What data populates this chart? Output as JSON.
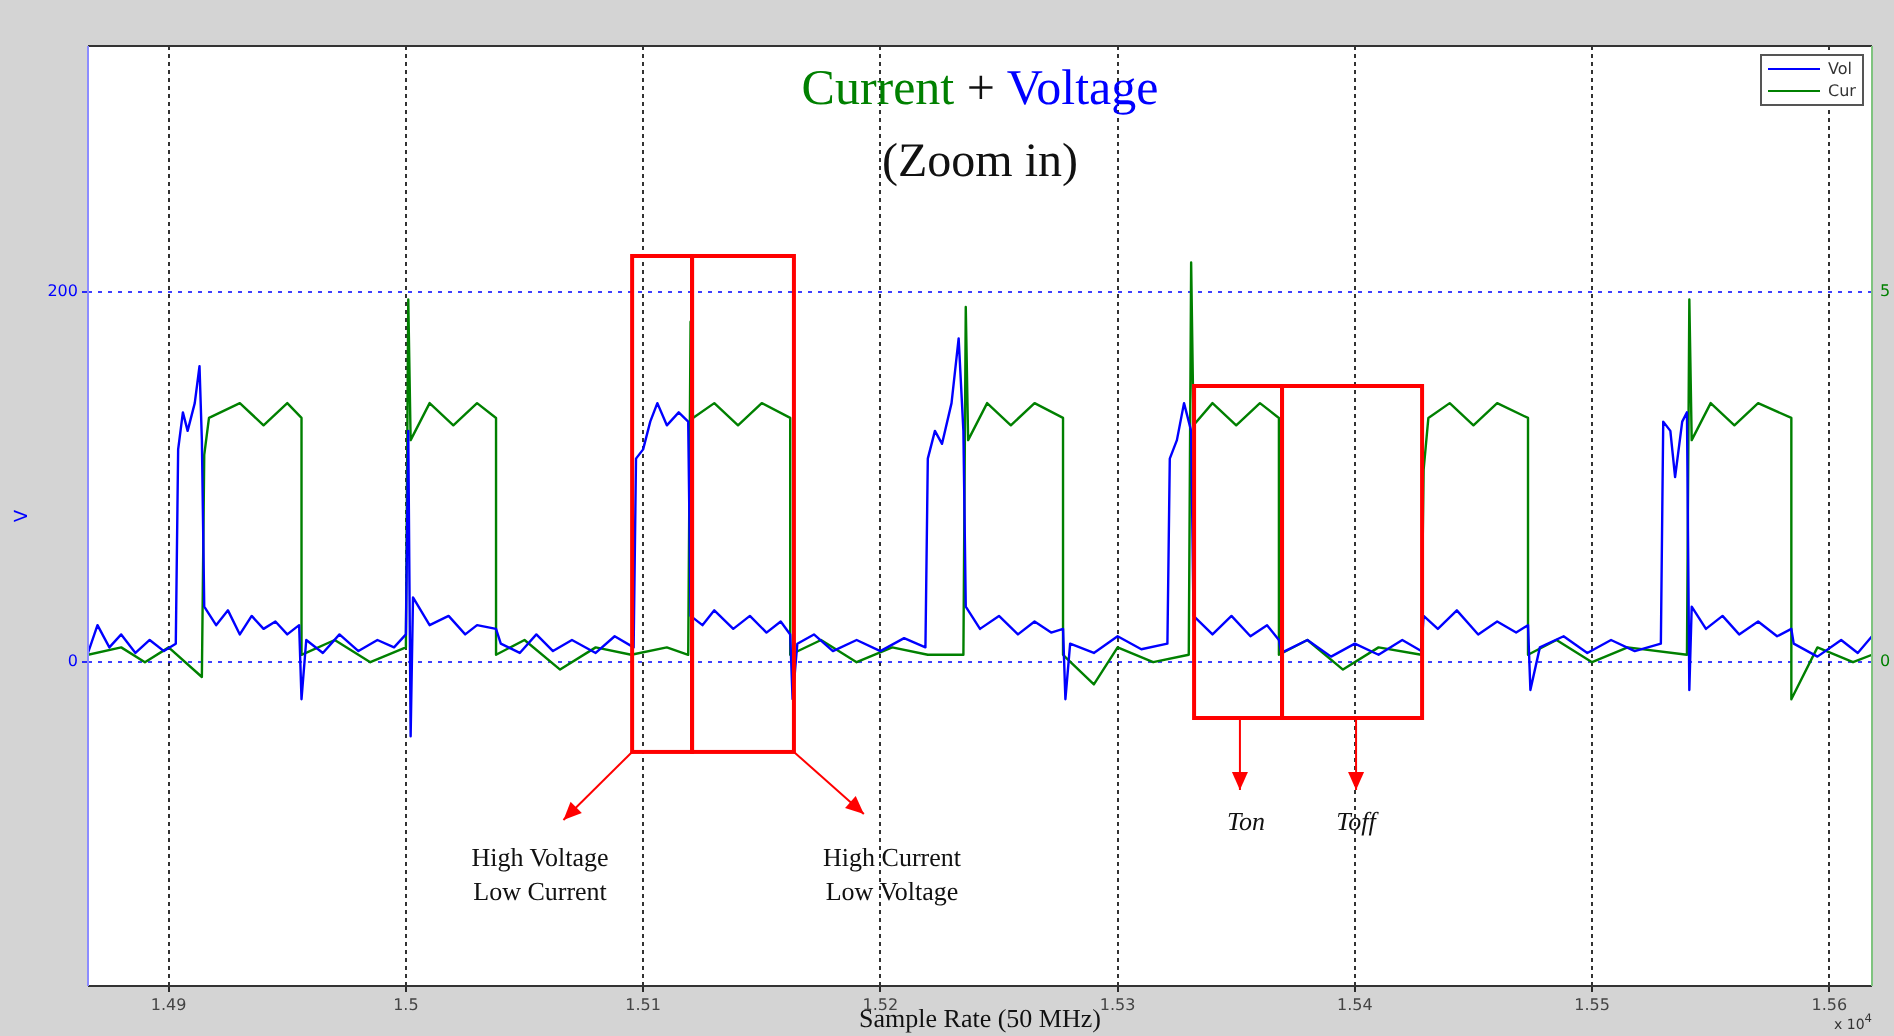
{
  "chart_data": {
    "type": "line",
    "title": "Current + Voltage",
    "subtitle": "(Zoom in)",
    "xlabel": "Sample Rate (50 MHz)",
    "ylabel": "V",
    "xlim": [
      1.4866,
      1.5618
    ],
    "xticks": [
      1.49,
      1.5,
      1.51,
      1.52,
      1.53,
      1.54,
      1.55,
      1.56
    ],
    "ylim": [
      -175,
      333
    ],
    "yticks": [
      0,
      200
    ],
    "y2lim": [
      -4.375,
      8.325
    ],
    "y2ticks": [
      0,
      5
    ],
    "grid": true,
    "legend": "top right",
    "marker": "none",
    "line_style": "solid",
    "series": [
      {
        "name": "Vol",
        "color": "#0000ff",
        "x": [
          1.4866,
          1.487,
          1.4875,
          1.488,
          1.4886,
          1.4892,
          1.4898,
          1.4903,
          1.4904,
          1.4906,
          1.4908,
          1.4911,
          1.4913,
          1.4914,
          1.4915,
          1.492,
          1.4925,
          1.493,
          1.4935,
          1.494,
          1.4945,
          1.495,
          1.4955,
          1.4956,
          1.4958,
          1.4965,
          1.4972,
          1.498,
          1.4988,
          1.4995,
          1.5,
          1.5001,
          1.5002,
          1.5003,
          1.501,
          1.5018,
          1.5025,
          1.503,
          1.5038,
          1.504,
          1.5048,
          1.5055,
          1.5062,
          1.507,
          1.508,
          1.5088,
          1.5096,
          1.5097,
          1.51,
          1.5103,
          1.5106,
          1.511,
          1.5115,
          1.5119,
          1.512,
          1.5125,
          1.513,
          1.5138,
          1.5145,
          1.5152,
          1.5158,
          1.5162,
          1.5163,
          1.5165,
          1.5172,
          1.518,
          1.519,
          1.52,
          1.521,
          1.5219,
          1.522,
          1.5223,
          1.5226,
          1.523,
          1.5233,
          1.5235,
          1.5236,
          1.5242,
          1.525,
          1.5258,
          1.5265,
          1.5272,
          1.5277,
          1.5278,
          1.528,
          1.529,
          1.53,
          1.531,
          1.5321,
          1.5322,
          1.5325,
          1.5328,
          1.5331,
          1.5332,
          1.534,
          1.5348,
          1.5356,
          1.5363,
          1.5368,
          1.5369,
          1.538,
          1.539,
          1.54,
          1.541,
          1.542,
          1.5428,
          1.5429,
          1.5435,
          1.5443,
          1.5452,
          1.546,
          1.5468,
          1.5473,
          1.5474,
          1.5478,
          1.5488,
          1.5498,
          1.5508,
          1.5518,
          1.5529,
          1.553,
          1.5533,
          1.5535,
          1.5538,
          1.554,
          1.5541,
          1.5542,
          1.5548,
          1.5555,
          1.5562,
          1.557,
          1.5578,
          1.5584,
          1.5585,
          1.5595,
          1.5605,
          1.5612,
          1.5618
        ],
        "values": [
          5,
          20,
          8,
          15,
          5,
          12,
          6,
          10,
          115,
          135,
          125,
          140,
          160,
          120,
          30,
          20,
          28,
          15,
          25,
          18,
          22,
          15,
          20,
          -20,
          12,
          5,
          15,
          6,
          12,
          8,
          15,
          125,
          -40,
          35,
          20,
          25,
          15,
          20,
          18,
          10,
          5,
          15,
          6,
          12,
          5,
          14,
          8,
          110,
          115,
          130,
          140,
          128,
          135,
          130,
          25,
          20,
          28,
          18,
          25,
          16,
          22,
          15,
          -20,
          10,
          15,
          6,
          12,
          6,
          13,
          8,
          110,
          125,
          118,
          140,
          175,
          125,
          30,
          18,
          25,
          15,
          22,
          16,
          18,
          -20,
          10,
          5,
          14,
          7,
          10,
          110,
          120,
          140,
          125,
          25,
          15,
          25,
          14,
          20,
          12,
          5,
          12,
          3,
          10,
          4,
          12,
          6,
          25,
          18,
          28,
          15,
          22,
          16,
          20,
          -15,
          8,
          14,
          5,
          12,
          6,
          10,
          130,
          125,
          100,
          130,
          135,
          -15,
          30,
          18,
          25,
          15,
          22,
          14,
          18,
          10,
          3,
          12,
          5,
          14
        ]
      },
      {
        "name": "Cur",
        "color": "#008000",
        "axis": "y2",
        "x": [
          1.4866,
          1.488,
          1.489,
          1.49,
          1.4914,
          1.4915,
          1.4917,
          1.493,
          1.494,
          1.495,
          1.4956,
          1.4956,
          1.497,
          1.4985,
          1.5,
          1.5001,
          1.5002,
          1.501,
          1.502,
          1.503,
          1.5038,
          1.5038,
          1.505,
          1.5065,
          1.508,
          1.5095,
          1.511,
          1.5119,
          1.512,
          1.5121,
          1.513,
          1.514,
          1.515,
          1.5162,
          1.5162,
          1.5175,
          1.519,
          1.5205,
          1.522,
          1.5235,
          1.5236,
          1.5237,
          1.5245,
          1.5255,
          1.5265,
          1.5277,
          1.5277,
          1.529,
          1.53,
          1.5315,
          1.533,
          1.5331,
          1.5332,
          1.534,
          1.535,
          1.536,
          1.5368,
          1.5368,
          1.538,
          1.5395,
          1.541,
          1.5428,
          1.5429,
          1.5431,
          1.544,
          1.545,
          1.546,
          1.5473,
          1.5473,
          1.5485,
          1.55,
          1.5515,
          1.554,
          1.5541,
          1.5542,
          1.555,
          1.556,
          1.557,
          1.5584,
          1.5584,
          1.5595,
          1.561,
          1.5618
        ],
        "values": [
          0.1,
          0.2,
          0,
          0.2,
          -0.2,
          2.8,
          3.3,
          3.5,
          3.2,
          3.5,
          3.3,
          0.1,
          0.3,
          0,
          0.2,
          4.9,
          3,
          3.5,
          3.2,
          3.5,
          3.3,
          0.1,
          0.3,
          -0.1,
          0.2,
          0.1,
          0.2,
          0.1,
          4.6,
          3.3,
          3.5,
          3.2,
          3.5,
          3.3,
          0.1,
          0.3,
          0,
          0.2,
          0.1,
          0.1,
          4.8,
          3,
          3.5,
          3.2,
          3.5,
          3.3,
          0.1,
          -0.3,
          0.2,
          0,
          0.1,
          5.4,
          3.2,
          3.5,
          3.2,
          3.5,
          3.3,
          0.1,
          0.3,
          -0.1,
          0.2,
          0.1,
          2.6,
          3.3,
          3.5,
          3.2,
          3.5,
          3.3,
          0.1,
          0.3,
          0,
          0.2,
          0.1,
          4.9,
          3,
          3.5,
          3.2,
          3.5,
          3.3,
          -0.5,
          0.2,
          0,
          0.1
        ]
      }
    ],
    "annotations": [
      "High Voltage\nLow Current",
      "High Current\nLow Voltage",
      "Ton",
      "Toff",
      "x 10$^{4}$"
    ]
  }
}
